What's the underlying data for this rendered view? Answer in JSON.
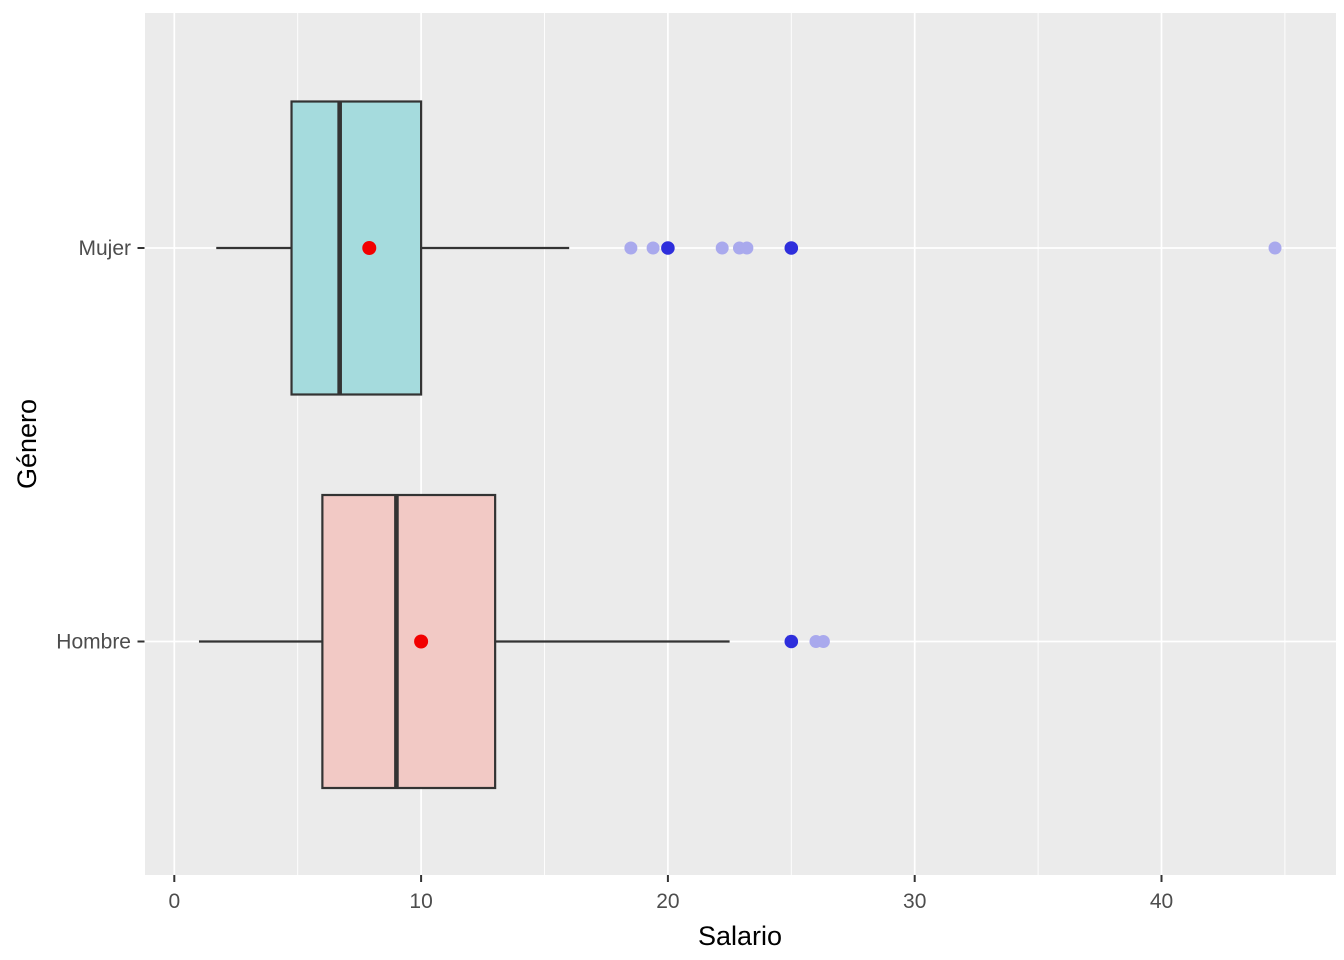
{
  "figure": {
    "background": "#FFFFFF"
  },
  "chart_data": {
    "type": "boxplot",
    "orientation": "horizontal",
    "xlabel": "Salario",
    "ylabel": "Género",
    "x_ticks": [
      0,
      10,
      20,
      30,
      40
    ],
    "x_minor_gridlines": [
      5,
      15,
      25,
      35,
      45
    ],
    "x_range": [
      -1.2,
      47.1
    ],
    "categories": [
      "Mujer",
      "Hombre"
    ],
    "grid": true,
    "legend": false,
    "series": [
      {
        "category": "Mujer",
        "box_fill": "#A5DBDD",
        "whisker_min": 1.7,
        "q1": 4.75,
        "median": 6.7,
        "q3": 10,
        "whisker_max": 16,
        "mean": 7.9,
        "outliers_light": [
          18.5,
          19.4,
          22.2,
          22.9,
          23.2,
          44.6
        ],
        "outliers_dark": [
          20,
          25
        ]
      },
      {
        "category": "Hombre",
        "box_fill": "#F2C9C5",
        "whisker_min": 1,
        "q1": 6,
        "median": 9,
        "q3": 13,
        "whisker_max": 22.5,
        "mean": 10,
        "outliers_light": [
          26,
          26.3
        ],
        "outliers_dark": [
          25
        ]
      }
    ],
    "colors": {
      "panel_background": "#EBEBEB",
      "gridline": "#FFFFFF",
      "box_border": "#333333",
      "median_line": "#333333",
      "whisker": "#333333",
      "mean_point": "#F20000",
      "outlier_light": "#A9A9ED",
      "outlier_dark": "#2E2EDC",
      "tick_label": "#4D4D4D",
      "tick_mark": "#333333",
      "axis_title": "#000000"
    }
  }
}
